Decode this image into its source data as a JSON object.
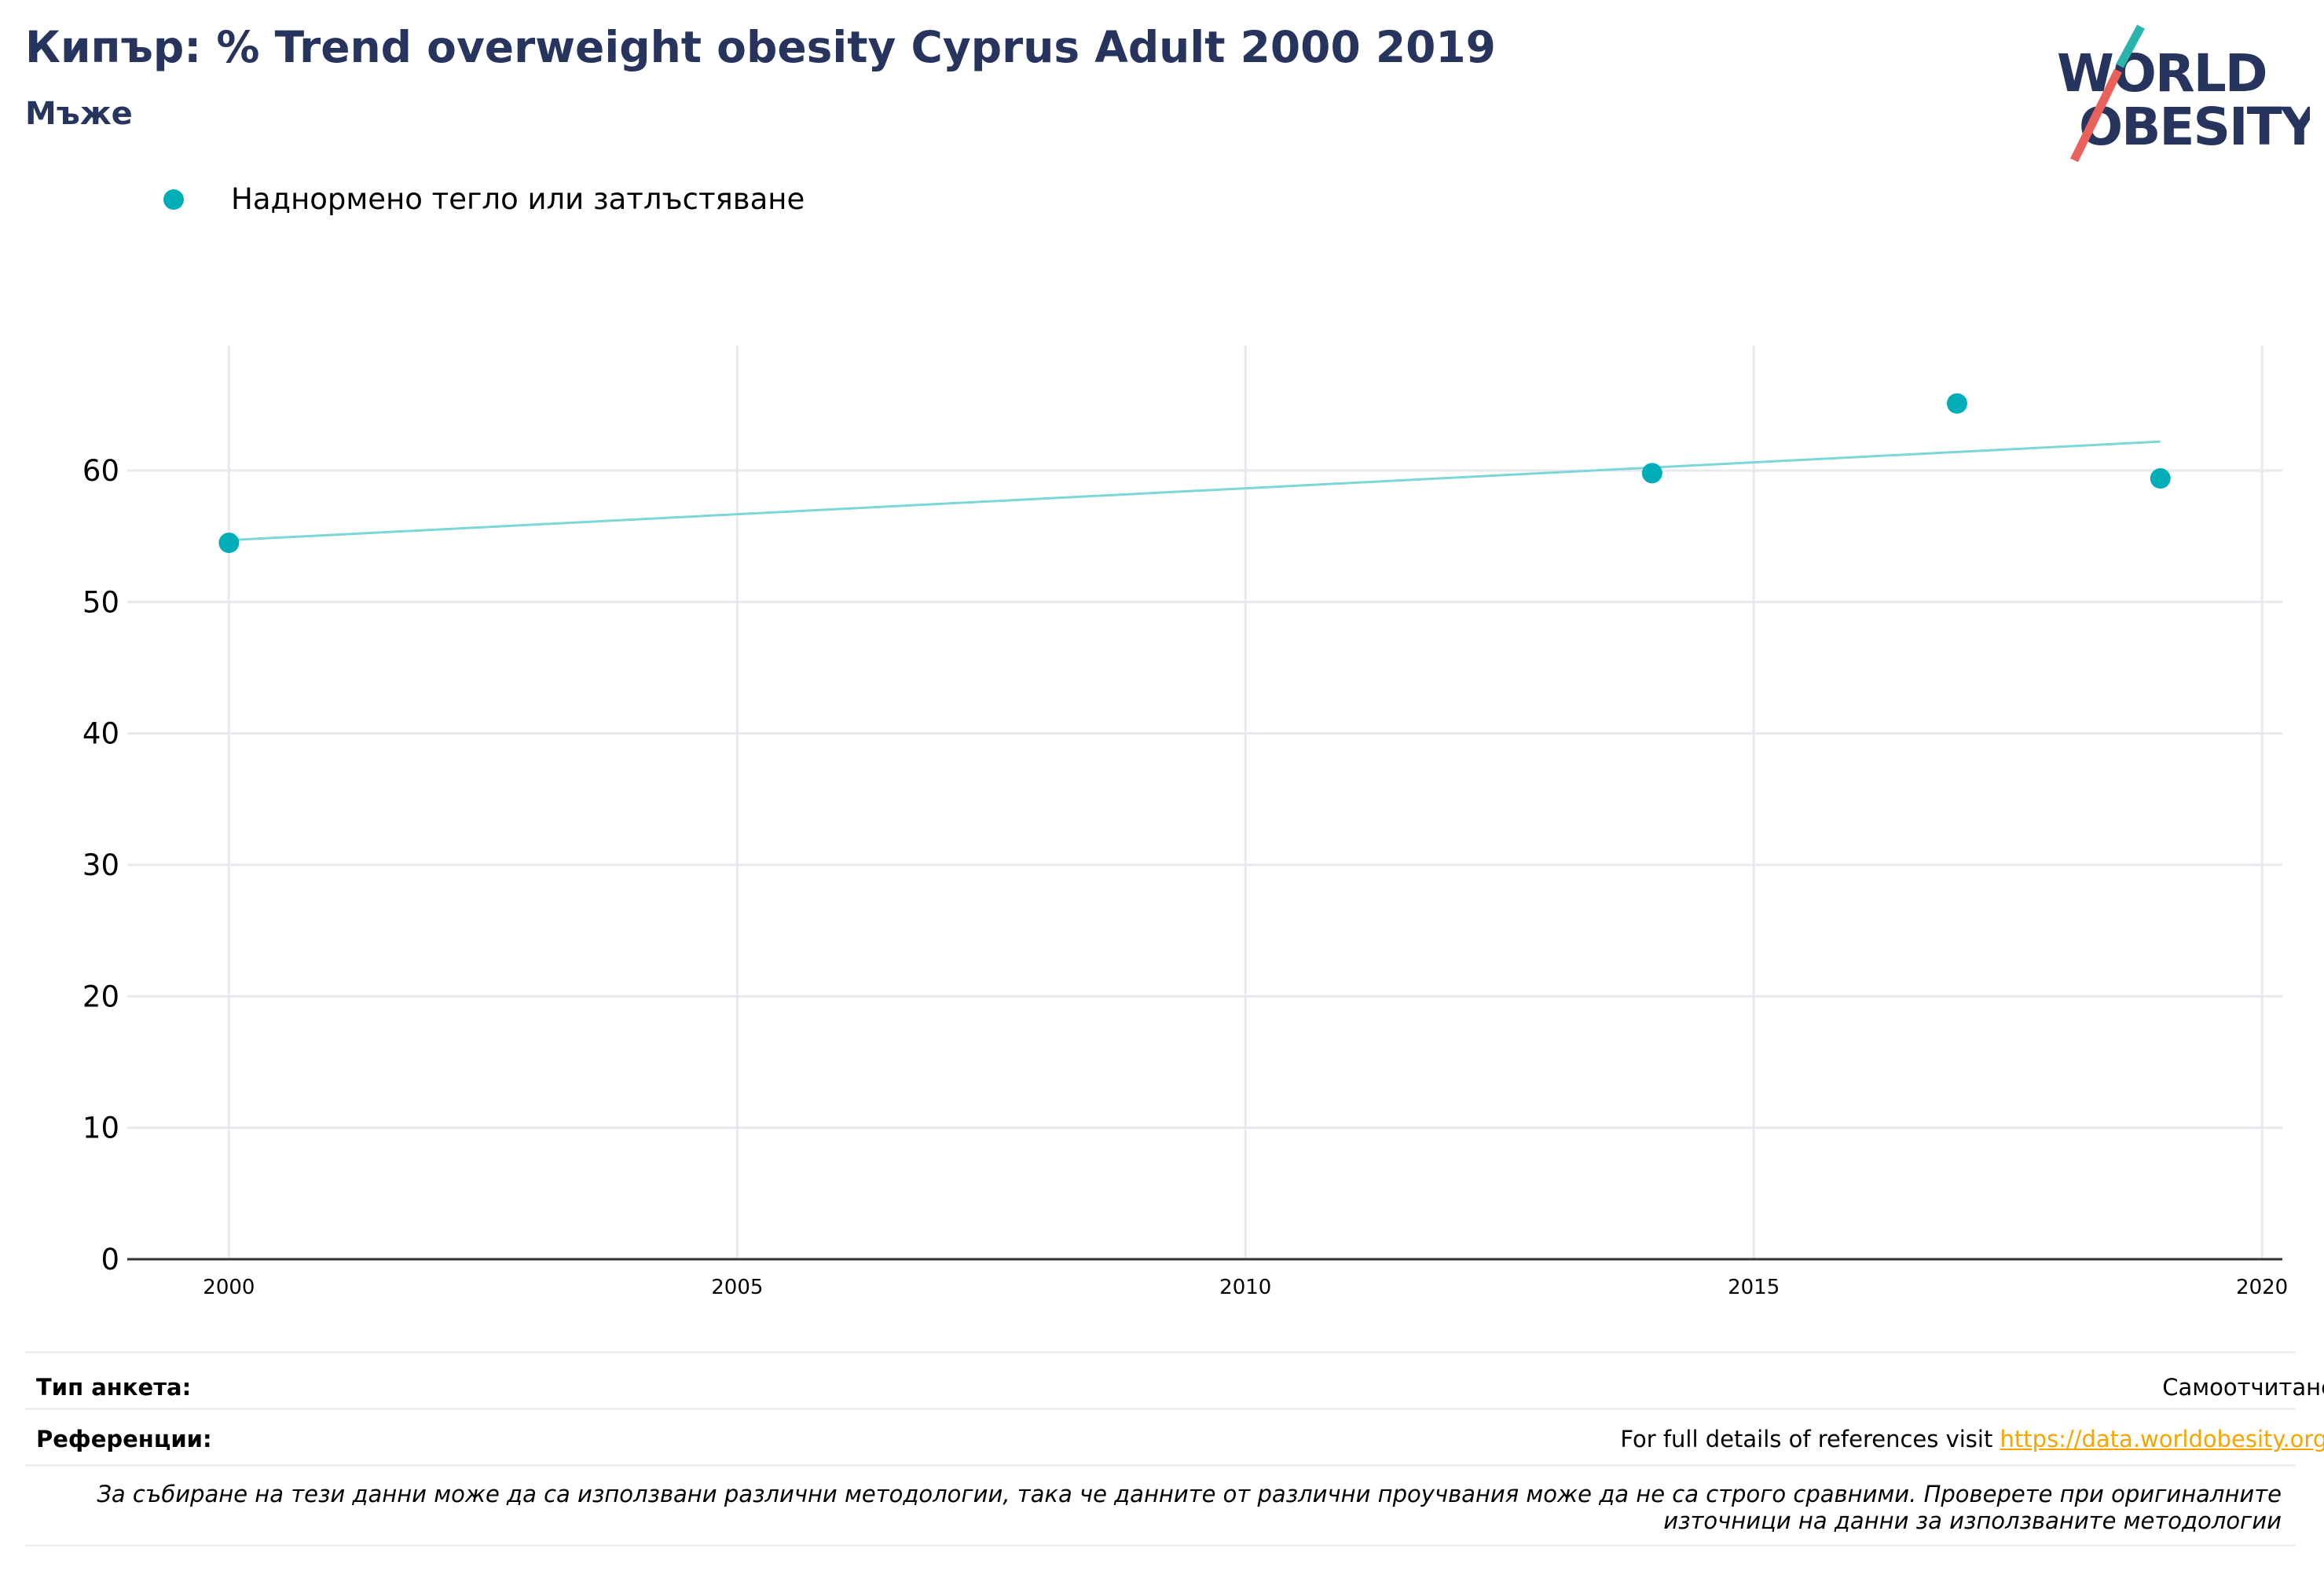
{
  "header": {
    "title": "Кипър: % Trend overweight obesity Cyprus Adult 2000 2019",
    "subtitle": "Мъже"
  },
  "logo": {
    "line1": "WORLD",
    "line2": "OBESITY",
    "colors": {
      "navy": "#27345e",
      "teal": "#2bb3ad",
      "coral": "#e8615a"
    }
  },
  "legend": {
    "label": "Наднормено тегло или затлъстяване",
    "color": "#00aeb7"
  },
  "chart_data": {
    "type": "scatter",
    "title": "Кипър: % Trend overweight obesity Cyprus Adult 2000 2019",
    "subtitle": "Мъже",
    "xlabel": "",
    "ylabel": "",
    "xlim": [
      1999,
      2020.2
    ],
    "ylim": [
      0,
      69.5
    ],
    "x_ticks": [
      2000,
      2005,
      2010,
      2015,
      2020
    ],
    "y_ticks": [
      0,
      10,
      20,
      30,
      40,
      50,
      60
    ],
    "grid": true,
    "series": [
      {
        "name": "Наднормено тегло или затлъстяване",
        "color": "#00aeb7",
        "points": [
          {
            "x": 2000,
            "y": 54.5
          },
          {
            "x": 2014,
            "y": 59.8
          },
          {
            "x": 2017,
            "y": 65.1
          },
          {
            "x": 2019,
            "y": 59.4
          }
        ]
      }
    ],
    "trendline": {
      "color": "#7dd6d8",
      "x": [
        2000,
        2019
      ],
      "y": [
        54.7,
        62.2
      ]
    }
  },
  "footer": {
    "survey_label": "Тип анкета:",
    "survey_value": "Самоотчитане",
    "refs_label": "Референции:",
    "refs_text": "For full details of references visit ",
    "refs_link": "https://data.worldobesity.org/",
    "note": "За събиране на тези данни може да са използвани различни методологии, така че данните от различни проучвания може да не са строго сравними. Проверете при оригиналните източници на данни за използваните методологии"
  }
}
